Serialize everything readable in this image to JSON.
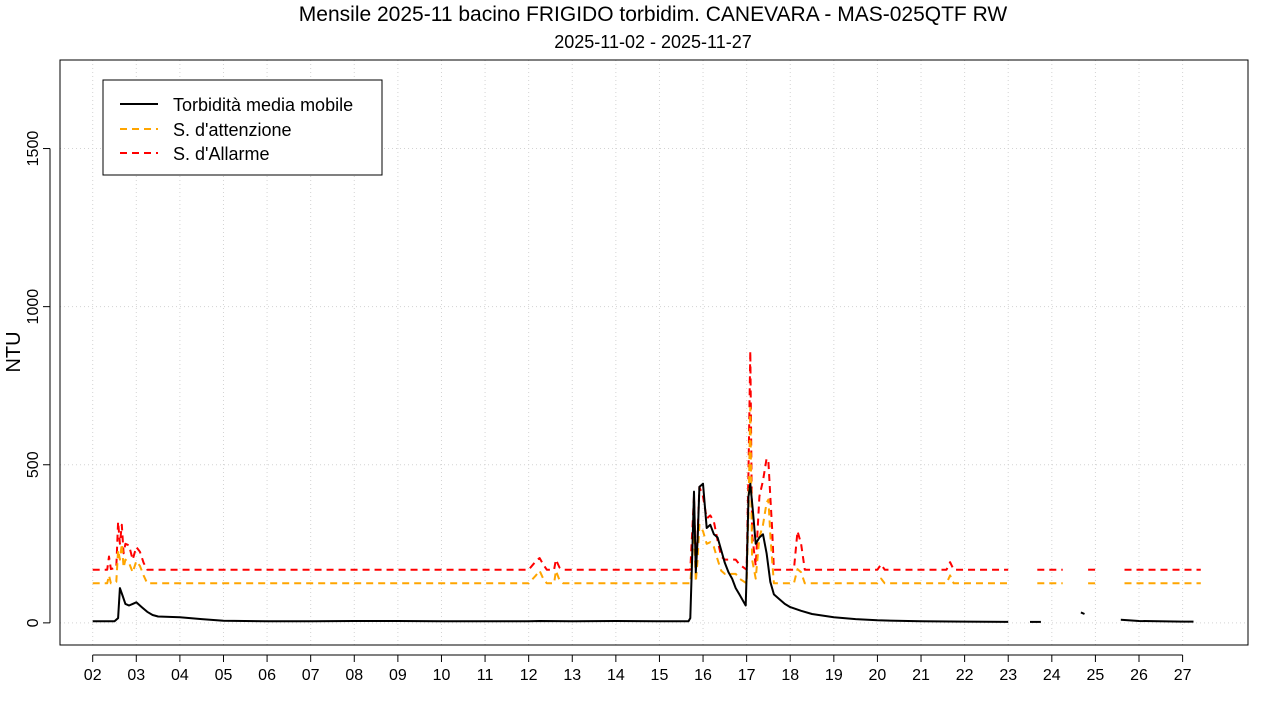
{
  "chart_data": {
    "type": "line",
    "title": "Mensile 2025-11 bacino FRIGIDO torbidim. CANEVARA - MAS-025QTF RW",
    "subtitle": "2025-11-02 - 2025-11-27",
    "ylabel": "NTU",
    "xlabel": "",
    "xlim": [
      "2025-11-01T06:00",
      "2025-11-28T12:00"
    ],
    "ylim": [
      -70,
      1780
    ],
    "x_ticks": [
      "02",
      "03",
      "04",
      "05",
      "06",
      "07",
      "08",
      "09",
      "10",
      "11",
      "12",
      "13",
      "14",
      "15",
      "16",
      "17",
      "18",
      "19",
      "20",
      "21",
      "22",
      "23",
      "24",
      "25",
      "26",
      "27"
    ],
    "y_ticks": [
      0,
      500,
      1000,
      1500
    ],
    "grid": true,
    "legend_position": "top-left",
    "series": [
      {
        "name": "Torbidità media mobile",
        "color": "#000000",
        "style": "solid",
        "segments": [
          [
            [
              "2025-11-02T00:00",
              5
            ],
            [
              "2025-11-02T12:00",
              5
            ],
            [
              "2025-11-02T14:00",
              15
            ],
            [
              "2025-11-02T15:00",
              110
            ],
            [
              "2025-11-02T16:30",
              85
            ],
            [
              "2025-11-02T18:00",
              60
            ],
            [
              "2025-11-02T20:00",
              55
            ],
            [
              "2025-11-02T22:00",
              60
            ],
            [
              "2025-11-03T00:00",
              65
            ],
            [
              "2025-11-03T03:00",
              50
            ],
            [
              "2025-11-03T06:00",
              35
            ],
            [
              "2025-11-03T09:00",
              25
            ],
            [
              "2025-11-03T12:00",
              20
            ],
            [
              "2025-11-04T00:00",
              18
            ],
            [
              "2025-11-04T12:00",
              12
            ],
            [
              "2025-11-05T00:00",
              7
            ],
            [
              "2025-11-06T00:00",
              5
            ],
            [
              "2025-11-07T00:00",
              5
            ],
            [
              "2025-11-08T00:00",
              6
            ],
            [
              "2025-11-09T00:00",
              6
            ],
            [
              "2025-11-10T00:00",
              5
            ],
            [
              "2025-11-11T00:00",
              5
            ],
            [
              "2025-11-12T00:00",
              5
            ],
            [
              "2025-11-12T06:00",
              6
            ],
            [
              "2025-11-13T00:00",
              5
            ],
            [
              "2025-11-14T00:00",
              6
            ],
            [
              "2025-11-15T00:00",
              5
            ],
            [
              "2025-11-15T16:00",
              5
            ],
            [
              "2025-11-15T17:00",
              15
            ],
            [
              "2025-11-15T18:00",
              200
            ],
            [
              "2025-11-15T19:00",
              415
            ],
            [
              "2025-11-15T20:00",
              160
            ],
            [
              "2025-11-15T21:00",
              260
            ],
            [
              "2025-11-15T22:00",
              430
            ],
            [
              "2025-11-16T00:00",
              440
            ],
            [
              "2025-11-16T02:00",
              300
            ],
            [
              "2025-11-16T04:00",
              310
            ],
            [
              "2025-11-16T06:00",
              280
            ],
            [
              "2025-11-16T08:00",
              270
            ],
            [
              "2025-11-16T10:00",
              230
            ],
            [
              "2025-11-16T12:00",
              190
            ],
            [
              "2025-11-16T14:00",
              160
            ],
            [
              "2025-11-16T16:00",
              140
            ],
            [
              "2025-11-16T18:00",
              110
            ],
            [
              "2025-11-16T20:00",
              90
            ],
            [
              "2025-11-16T22:00",
              70
            ],
            [
              "2025-11-16T23:30",
              55
            ],
            [
              "2025-11-17T00:00",
              150
            ],
            [
              "2025-11-17T01:00",
              400
            ],
            [
              "2025-11-17T02:00",
              440
            ],
            [
              "2025-11-17T03:30",
              350
            ],
            [
              "2025-11-17T05:00",
              250
            ],
            [
              "2025-11-17T07:00",
              270
            ],
            [
              "2025-11-17T09:00",
              280
            ],
            [
              "2025-11-17T11:00",
              220
            ],
            [
              "2025-11-17T13:00",
              130
            ],
            [
              "2025-11-17T15:00",
              90
            ],
            [
              "2025-11-17T18:00",
              75
            ],
            [
              "2025-11-17T21:00",
              60
            ],
            [
              "2025-11-18T00:00",
              50
            ],
            [
              "2025-11-18T06:00",
              38
            ],
            [
              "2025-11-18T12:00",
              28
            ],
            [
              "2025-11-19T00:00",
              18
            ],
            [
              "2025-11-19T12:00",
              12
            ],
            [
              "2025-11-20T00:00",
              8
            ],
            [
              "2025-11-21T00:00",
              5
            ],
            [
              "2025-11-22T00:00",
              4
            ],
            [
              "2025-11-23T00:00",
              3
            ]
          ],
          [
            [
              "2025-11-23T12:00",
              3
            ],
            [
              "2025-11-23T18:00",
              3
            ]
          ],
          [
            [
              "2025-11-24T16:00",
              33
            ],
            [
              "2025-11-24T18:00",
              28
            ]
          ],
          [
            [
              "2025-11-25T14:00",
              10
            ],
            [
              "2025-11-26T00:00",
              6
            ],
            [
              "2025-11-27T00:00",
              4
            ],
            [
              "2025-11-27T06:00",
              4
            ]
          ]
        ]
      },
      {
        "name": "S. d'attenzione",
        "color": "#ffa500",
        "style": "dashed",
        "segments": [
          [
            [
              "2025-11-02T00:00",
              125
            ],
            [
              "2025-11-02T08:00",
              125
            ],
            [
              "2025-11-02T09:00",
              150
            ],
            [
              "2025-11-02T10:00",
              125
            ],
            [
              "2025-11-02T13:00",
              130
            ],
            [
              "2025-11-02T14:00",
              230
            ],
            [
              "2025-11-02T15:00",
              200
            ],
            [
              "2025-11-02T16:00",
              250
            ],
            [
              "2025-11-02T17:00",
              175
            ],
            [
              "2025-11-02T18:00",
              200
            ],
            [
              "2025-11-02T20:00",
              190
            ],
            [
              "2025-11-02T22:00",
              160
            ],
            [
              "2025-11-03T00:00",
              195
            ],
            [
              "2025-11-03T02:00",
              180
            ],
            [
              "2025-11-03T04:00",
              150
            ],
            [
              "2025-11-03T06:00",
              125
            ],
            [
              "2025-11-12T00:00",
              125
            ],
            [
              "2025-11-12T04:00",
              150
            ],
            [
              "2025-11-12T06:00",
              165
            ],
            [
              "2025-11-12T08:00",
              140
            ],
            [
              "2025-11-12T10:00",
              125
            ],
            [
              "2025-11-12T14:00",
              125
            ],
            [
              "2025-11-12T15:00",
              165
            ],
            [
              "2025-11-12T17:00",
              135
            ],
            [
              "2025-11-12T19:00",
              125
            ],
            [
              "2025-11-15T17:00",
              125
            ],
            [
              "2025-11-15T19:00",
              300
            ],
            [
              "2025-11-15T20:00",
              130
            ],
            [
              "2025-11-15T21:00",
              200
            ],
            [
              "2025-11-15T22:00",
              310
            ],
            [
              "2025-11-16T00:00",
              290
            ],
            [
              "2025-11-16T02:00",
              250
            ],
            [
              "2025-11-16T04:00",
              255
            ],
            [
              "2025-11-16T06:00",
              240
            ],
            [
              "2025-11-16T08:00",
              200
            ],
            [
              "2025-11-16T10:00",
              165
            ],
            [
              "2025-11-16T12:00",
              155
            ],
            [
              "2025-11-16T18:00",
              155
            ],
            [
              "2025-11-16T20:00",
              140
            ],
            [
              "2025-11-17T00:00",
              125
            ],
            [
              "2025-11-17T01:00",
              350
            ],
            [
              "2025-11-17T02:00",
              680
            ],
            [
              "2025-11-17T03:00",
              200
            ],
            [
              "2025-11-17T05:00",
              140
            ],
            [
              "2025-11-17T07:00",
              270
            ],
            [
              "2025-11-17T09:00",
              310
            ],
            [
              "2025-11-17T11:00",
              380
            ],
            [
              "2025-11-17T12:00",
              390
            ],
            [
              "2025-11-17T13:00",
              280
            ],
            [
              "2025-11-17T14:00",
              200
            ],
            [
              "2025-11-17T15:00",
              125
            ],
            [
              "2025-11-18T02:00",
              125
            ],
            [
              "2025-11-18T04:00",
              170
            ],
            [
              "2025-11-18T06:00",
              160
            ],
            [
              "2025-11-18T08:00",
              125
            ],
            [
              "2025-11-20T00:00",
              125
            ],
            [
              "2025-11-20T02:00",
              140
            ],
            [
              "2025-11-20T04:00",
              125
            ],
            [
              "2025-11-21T14:00",
              125
            ],
            [
              "2025-11-21T16:00",
              150
            ],
            [
              "2025-11-21T18:00",
              125
            ],
            [
              "2025-11-23T00:00",
              125
            ]
          ],
          [
            [
              "2025-11-23T16:00",
              125
            ],
            [
              "2025-11-24T06:00",
              125
            ]
          ],
          [
            [
              "2025-11-24T20:00",
              125
            ],
            [
              "2025-11-25T00:00",
              125
            ]
          ],
          [
            [
              "2025-11-25T16:00",
              125
            ],
            [
              "2025-11-27T10:00",
              125
            ]
          ]
        ]
      },
      {
        "name": "S. d'Allarme",
        "color": "#ff0000",
        "style": "dashed",
        "segments": [
          [
            [
              "2025-11-02T00:00",
              168
            ],
            [
              "2025-11-02T08:00",
              168
            ],
            [
              "2025-11-02T09:00",
              210
            ],
            [
              "2025-11-02T10:00",
              170
            ],
            [
              "2025-11-02T13:00",
              175
            ],
            [
              "2025-11-02T14:00",
              320
            ],
            [
              "2025-11-02T15:00",
              250
            ],
            [
              "2025-11-02T16:00",
              310
            ],
            [
              "2025-11-02T17:00",
              220
            ],
            [
              "2025-11-02T18:00",
              250
            ],
            [
              "2025-11-02T20:00",
              245
            ],
            [
              "2025-11-02T22:00",
              200
            ],
            [
              "2025-11-03T00:00",
              240
            ],
            [
              "2025-11-03T02:00",
              225
            ],
            [
              "2025-11-03T04:00",
              190
            ],
            [
              "2025-11-03T06:00",
              168
            ],
            [
              "2025-11-12T00:00",
              168
            ],
            [
              "2025-11-12T04:00",
              195
            ],
            [
              "2025-11-12T06:00",
              205
            ],
            [
              "2025-11-12T08:00",
              185
            ],
            [
              "2025-11-12T10:00",
              168
            ],
            [
              "2025-11-12T14:00",
              168
            ],
            [
              "2025-11-12T15:00",
              200
            ],
            [
              "2025-11-12T17:00",
              175
            ],
            [
              "2025-11-12T19:00",
              168
            ],
            [
              "2025-11-15T17:00",
              168
            ],
            [
              "2025-11-15T19:00",
              400
            ],
            [
              "2025-11-15T20:00",
              175
            ],
            [
              "2025-11-15T21:00",
              280
            ],
            [
              "2025-11-15T22:00",
              430
            ],
            [
              "2025-11-16T00:00",
              400
            ],
            [
              "2025-11-16T02:00",
              330
            ],
            [
              "2025-11-16T04:00",
              340
            ],
            [
              "2025-11-16T06:00",
              320
            ],
            [
              "2025-11-16T08:00",
              260
            ],
            [
              "2025-11-16T10:00",
              210
            ],
            [
              "2025-11-16T12:00",
              200
            ],
            [
              "2025-11-16T18:00",
              200
            ],
            [
              "2025-11-16T20:00",
              185
            ],
            [
              "2025-11-17T00:00",
              168
            ],
            [
              "2025-11-17T01:00",
              480
            ],
            [
              "2025-11-17T02:00",
              860
            ],
            [
              "2025-11-17T03:00",
              280
            ],
            [
              "2025-11-17T05:00",
              180
            ],
            [
              "2025-11-17T07:00",
              400
            ],
            [
              "2025-11-17T09:00",
              450
            ],
            [
              "2025-11-17T11:00",
              520
            ],
            [
              "2025-11-17T12:00",
              510
            ],
            [
              "2025-11-17T13:00",
              400
            ],
            [
              "2025-11-17T14:00",
              300
            ],
            [
              "2025-11-17T15:00",
              168
            ],
            [
              "2025-11-18T02:00",
              168
            ],
            [
              "2025-11-18T04:00",
              290
            ],
            [
              "2025-11-18T06:00",
              250
            ],
            [
              "2025-11-18T08:00",
              168
            ],
            [
              "2025-11-20T00:00",
              168
            ],
            [
              "2025-11-20T02:00",
              185
            ],
            [
              "2025-11-20T04:00",
              168
            ],
            [
              "2025-11-21T14:00",
              168
            ],
            [
              "2025-11-21T16:00",
              192
            ],
            [
              "2025-11-21T18:00",
              168
            ],
            [
              "2025-11-23T00:00",
              168
            ]
          ],
          [
            [
              "2025-11-23T16:00",
              168
            ],
            [
              "2025-11-24T06:00",
              168
            ]
          ],
          [
            [
              "2025-11-24T20:00",
              168
            ],
            [
              "2025-11-25T00:00",
              168
            ]
          ],
          [
            [
              "2025-11-25T16:00",
              168
            ],
            [
              "2025-11-27T10:00",
              168
            ]
          ]
        ]
      }
    ]
  }
}
